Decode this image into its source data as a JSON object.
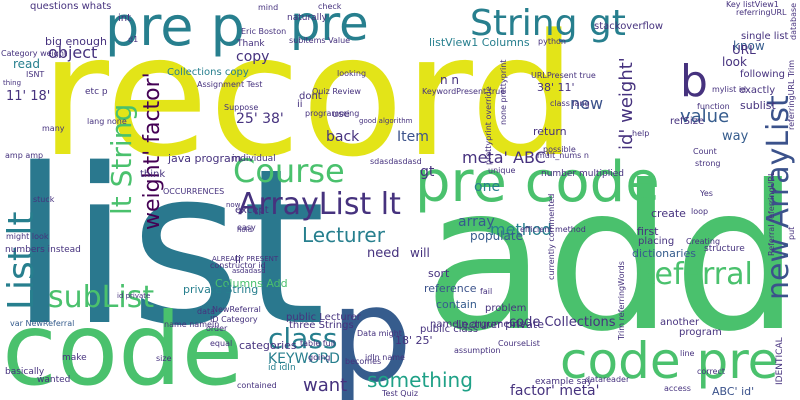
{
  "words": [
    "record",
    "list",
    "add",
    "code",
    "p",
    "pre p",
    "pre",
    "String gt",
    "code pre",
    "lt String",
    "Course",
    "pre code",
    "ArrayList lt",
    "new ArrayList",
    "List lt",
    "subList",
    "class",
    "Referral",
    "b",
    "KEYWORD",
    "something",
    "want",
    "factor' meta'",
    "ABC' id'",
    "weight' factor'",
    "meta' ABC'",
    "id' weight'",
    "Lecturer",
    "method",
    "value",
    "array",
    "populate",
    "Item",
    "object",
    "big enough",
    "11' 18'",
    "25' 38'",
    "38' 11'",
    "18' 25'",
    "questions whats",
    "read",
    "new",
    "copy",
    "know",
    "URL",
    "look",
    "n n",
    "way",
    "one",
    "need",
    "will",
    "li",
    "sort",
    "reference",
    "contain",
    "code Collections",
    "Lecturer private",
    "listView1 Columns",
    "Columns Add",
    "private String",
    "following",
    "sublist",
    "exactly",
    "refSize",
    "return",
    "stackoverflow",
    "single list",
    "Collections copy",
    "java program",
    "categories",
    "public Lecturer",
    "three Strings",
    "nameIn arguments",
    "public class",
    "problem",
    "dictionaries",
    "placing",
    "first",
    "create",
    "another",
    "program",
    "structure",
    "basically",
    "numbers instead",
    "Thank",
    "naturally",
    "Eric Boston",
    "subitems Value",
    "mind",
    "d1",
    "check",
    "dont",
    "ii",
    "use",
    "programming",
    "KeywordPresent true",
    "id idIn",
    "name nameIn",
    "OCCURRENCES",
    "ALREADY PRESENT",
    "id private",
    "NewReferral",
    "asdadasd",
    "data",
    "order",
    "equal",
    "fail",
    "example say",
    "datareader",
    "CourseList",
    "mult_nums n",
    "URLPresent true",
    "var NewReferral",
    "Category weight",
    "thing",
    "int",
    "amp amp",
    "etc p",
    "lang none",
    "many",
    "good algorithm",
    "prettyprint override",
    "none prettyprint",
    "back",
    "gt",
    "except",
    "think",
    "individual",
    "sdasdasdasd",
    "unique",
    "number multiplied",
    "possible",
    "efficient method",
    "Data might",
    "idIn name",
    "contained",
    "Test Quiz",
    "wanted",
    "make",
    "line",
    "access",
    "correct",
    "size",
    "easy",
    "hold",
    "now",
    "table full",
    "going",
    "becomes",
    "IDENTICAL",
    "put",
    "currently commented",
    "referringURL Trim",
    "Trim referringWords",
    "Referral referringURL",
    "database",
    "Creating",
    "loop",
    "strong",
    "Count",
    "function",
    "mylist id",
    "referringURL",
    "Key listView1",
    "Suppose",
    "looking",
    "Assignment Test",
    "Quiz Review",
    "ID Category",
    "constructor id",
    "stuck",
    "ISNT",
    "class lang",
    "python",
    "help",
    "Yes",
    "might look",
    "assumption"
  ]
}
